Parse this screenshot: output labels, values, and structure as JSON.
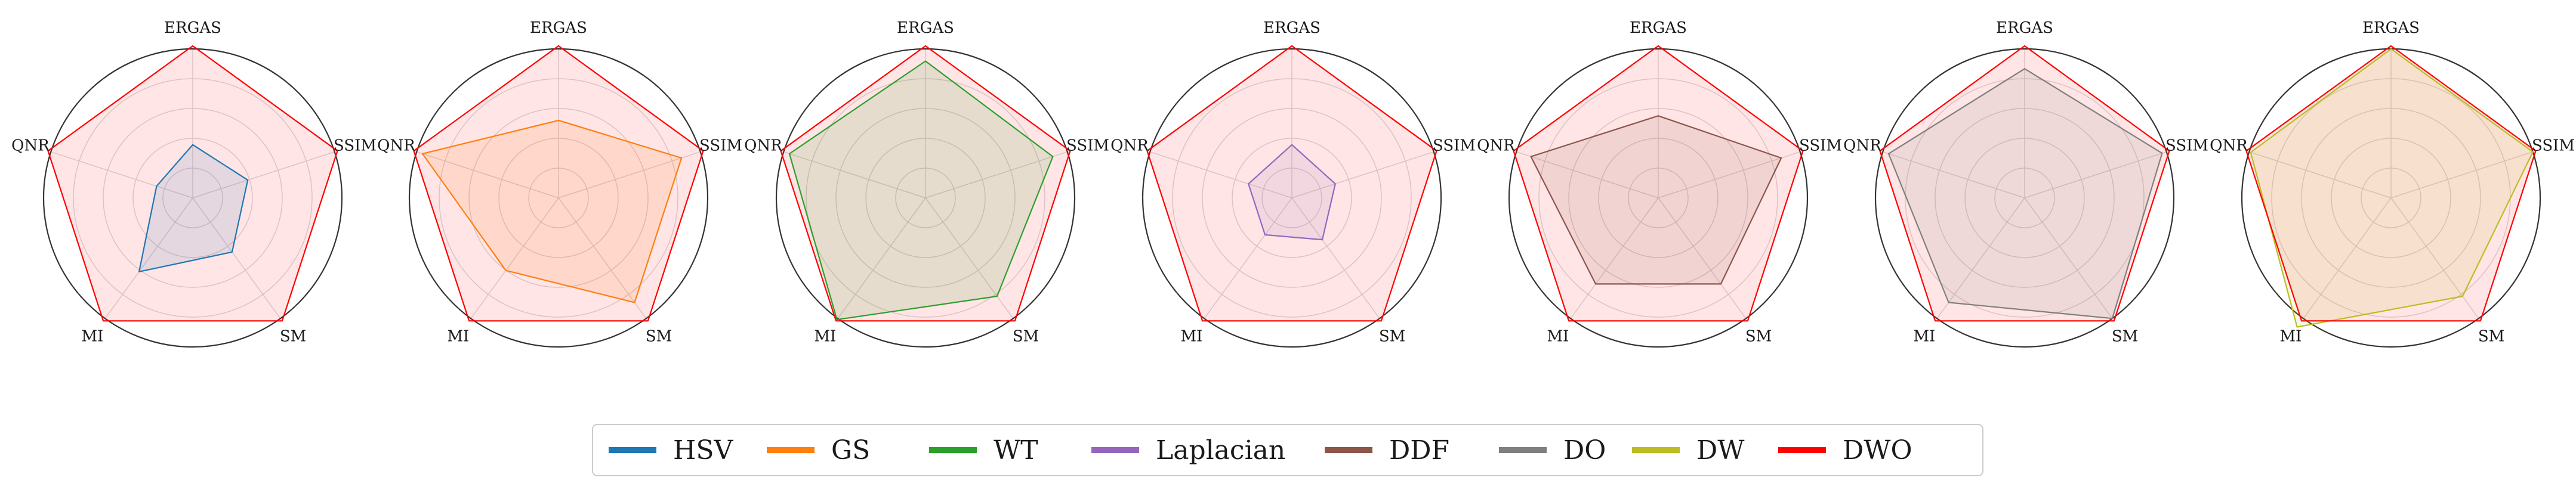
{
  "chart_data": {
    "type": "radar",
    "axes": [
      "ERGAS",
      "SSIM",
      "SM",
      "MI",
      "QNR"
    ],
    "range": [
      0,
      1
    ],
    "grid": true,
    "rings": [
      0.2,
      0.4,
      0.6,
      0.8,
      1.0
    ],
    "legend_position": "bottom-center",
    "legend": [
      {
        "name": "HSV",
        "color": "#1f77b4"
      },
      {
        "name": "GS",
        "color": "#ff7f0e"
      },
      {
        "name": "WT",
        "color": "#2ca02c"
      },
      {
        "name": "Laplacian",
        "color": "#9467bd"
      },
      {
        "name": "DDF",
        "color": "#8c564b"
      },
      {
        "name": "DO",
        "color": "#7f7f7f"
      },
      {
        "name": "DW",
        "color": "#bcbd22"
      },
      {
        "name": "DWO",
        "color": "#ff0000"
      }
    ],
    "charts": [
      {
        "method": "HSV",
        "color": "#1f77b4",
        "values": [
          0.35,
          0.38,
          0.44,
          0.6,
          0.25
        ]
      },
      {
        "method": "GS",
        "color": "#ff7f0e",
        "values": [
          0.51,
          0.85,
          0.85,
          0.59,
          0.94
        ]
      },
      {
        "method": "WT",
        "color": "#2ca02c",
        "values": [
          0.9,
          0.88,
          0.8,
          0.99,
          0.94
        ]
      },
      {
        "method": "Laplacian",
        "color": "#9467bd",
        "values": [
          0.35,
          0.3,
          0.34,
          0.3,
          0.3
        ]
      },
      {
        "method": "DDF",
        "color": "#8c564b",
        "values": [
          0.54,
          0.85,
          0.7,
          0.7,
          0.88
        ]
      },
      {
        "method": "DO",
        "color": "#7f7f7f",
        "values": [
          0.85,
          0.95,
          0.98,
          0.85,
          0.94
        ]
      },
      {
        "method": "DW",
        "color": "#bcbd22",
        "values": [
          0.98,
          0.98,
          0.8,
          1.05,
          0.97
        ]
      }
    ],
    "reference": {
      "method": "DWO",
      "color": "#ff0000",
      "values": [
        1.0,
        1.0,
        1.0,
        1.0,
        1.0
      ]
    }
  }
}
